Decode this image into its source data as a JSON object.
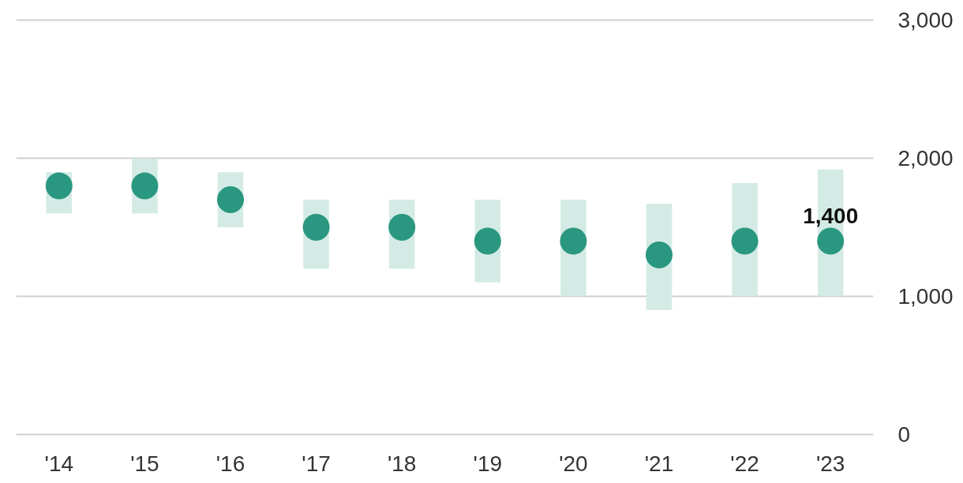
{
  "chart_data": {
    "type": "scatter",
    "categories": [
      "'14",
      "'15",
      "'16",
      "'17",
      "'18",
      "'19",
      "'20",
      "'21",
      "'22",
      "'23"
    ],
    "series": [
      {
        "type": "bar",
        "color": "#d4ebe5",
        "base": [
          1600,
          1600,
          1500,
          1200,
          1200,
          1100,
          1000,
          900,
          1000,
          1000
        ],
        "values": [
          300,
          400,
          400,
          500,
          500,
          600,
          700,
          770,
          820,
          920
        ]
      },
      {
        "color": "#2a9780",
        "values": [
          1800,
          1800,
          1700,
          1500,
          1500,
          1400,
          1400,
          1300,
          1400,
          1400
        ],
        "value_labels": [
          null,
          null,
          null,
          null,
          null,
          null,
          null,
          null,
          null,
          "1,400"
        ]
      }
    ],
    "ylim": [
      0,
      3000
    ],
    "yticks": [
      0,
      {
        "value": 1000,
        "label": "1,000"
      },
      {
        "value": 2000,
        "label": "2,000"
      },
      {
        "value": 3000,
        "label": "3,000"
      }
    ],
    "grid": "y",
    "marker": "circle"
  }
}
